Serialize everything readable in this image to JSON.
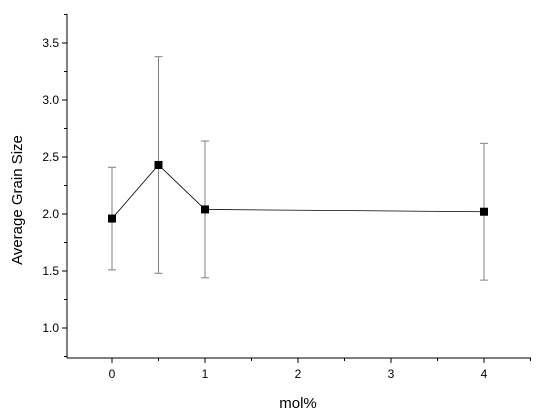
{
  "chart_data": {
    "type": "scatter",
    "title": "",
    "xlabel": "mol%",
    "ylabel": "Average Grain Size",
    "x_ticks": [
      {
        "pos": 0,
        "label": "0"
      },
      {
        "pos": 1,
        "label": "1"
      },
      {
        "pos": 2,
        "label": "2"
      },
      {
        "pos": 3,
        "label": "3"
      },
      {
        "pos": 4,
        "label": "4"
      }
    ],
    "y_ticks": [
      1.0,
      1.5,
      2.0,
      2.5,
      3.0,
      3.5
    ],
    "y_tick_labels": [
      "1.0",
      "1.5",
      "2.0",
      "2.5",
      "3.0",
      "3.5"
    ],
    "points": [
      {
        "x": 0,
        "y": 1.96,
        "err_low": 1.51,
        "err_high": 2.41
      },
      {
        "x": 0.5,
        "y": 2.43,
        "err_low": 1.48,
        "err_high": 3.38
      },
      {
        "x": 1,
        "y": 2.04,
        "err_low": 1.44,
        "err_high": 2.64
      },
      {
        "x": 4,
        "y": 2.02,
        "err_low": 1.42,
        "err_high": 2.62
      }
    ],
    "connected": true,
    "marker": "square",
    "grid": false,
    "legend": "none",
    "colors": {
      "line": "#000000",
      "marker": "#000000",
      "errorbar": "#808080"
    }
  }
}
